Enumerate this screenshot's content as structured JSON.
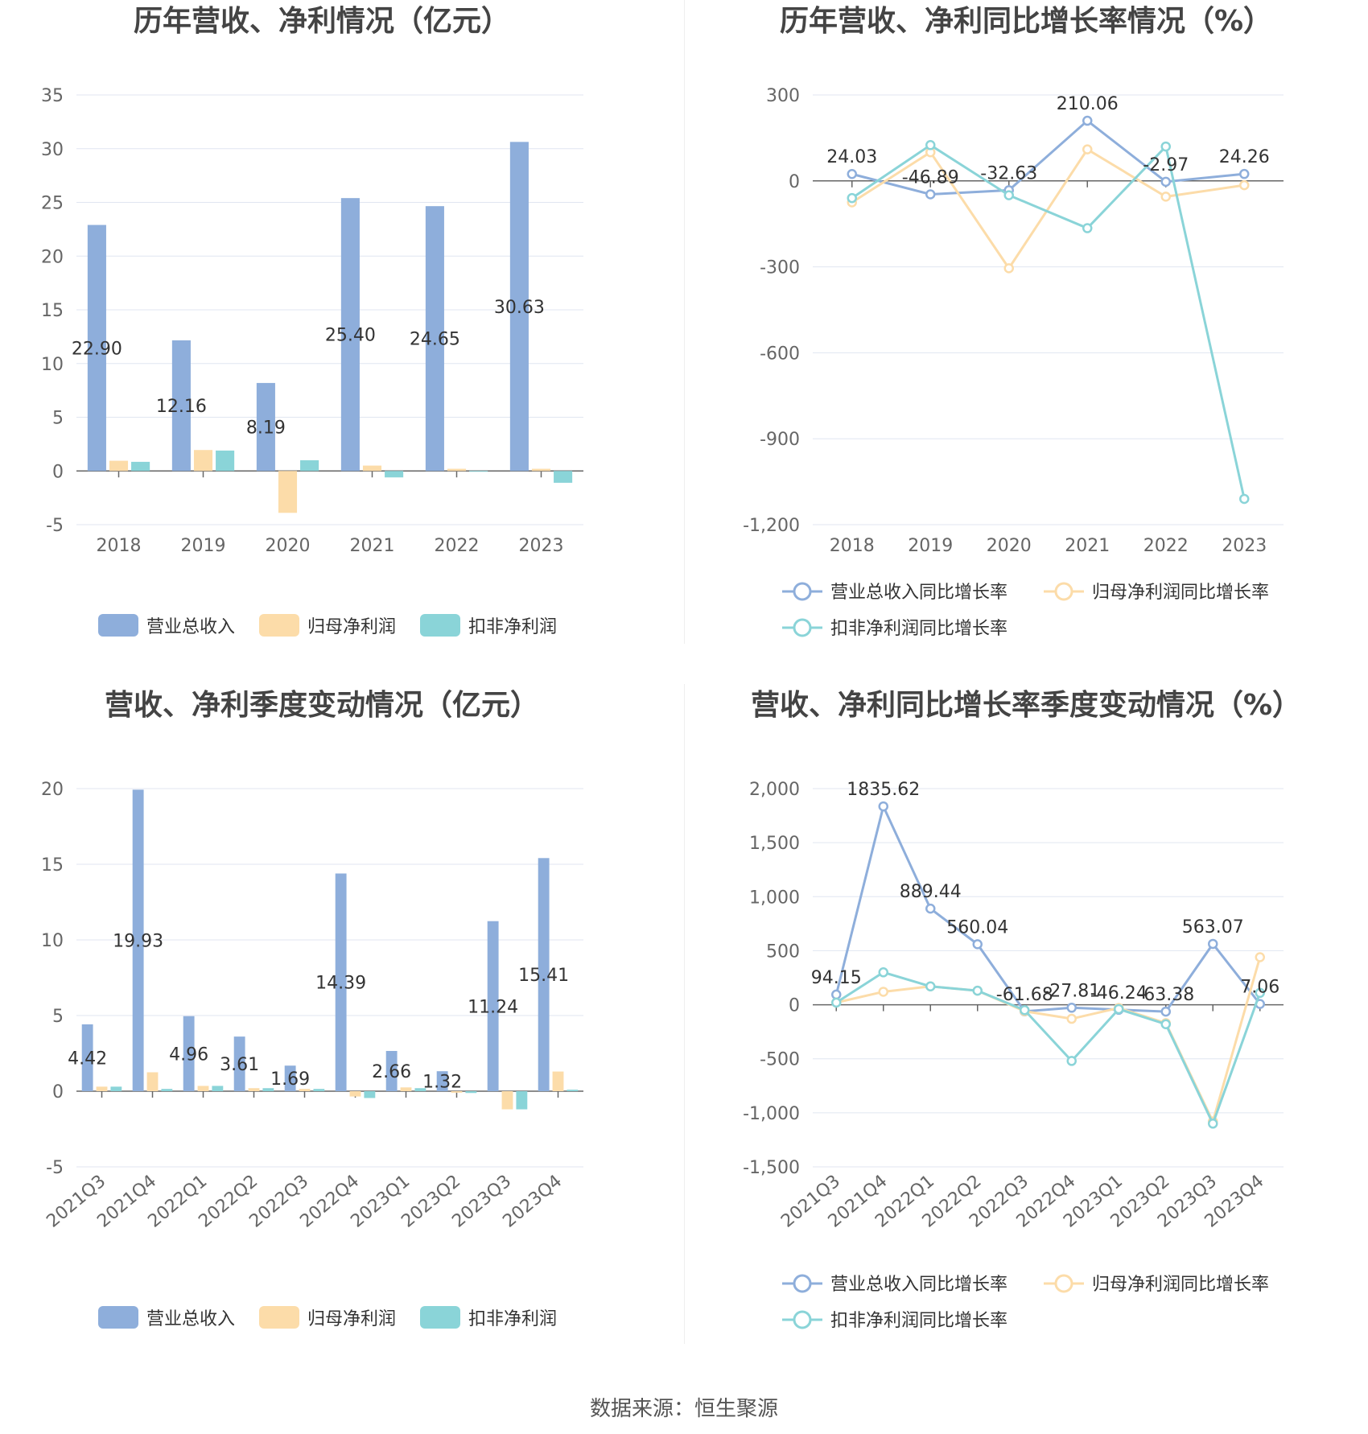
{
  "source": "数据来源：恒生聚源",
  "chart_data": [
    {
      "type": "bar",
      "title": "历年营收、净利情况（亿元）",
      "categories": [
        "2018",
        "2019",
        "2020",
        "2021",
        "2022",
        "2023"
      ],
      "ylim": [
        -5,
        35
      ],
      "yticks": [
        -5,
        0,
        5,
        10,
        15,
        20,
        25,
        30,
        35
      ],
      "grid": true,
      "legend": "bottom",
      "series": [
        {
          "name": "营业总收入",
          "color": "#8eaedb",
          "values": [
            22.9,
            12.16,
            8.19,
            25.4,
            24.65,
            30.63
          ],
          "labels": [
            "22.90",
            "12.16",
            "8.19",
            "25.40",
            "24.65",
            "30.63"
          ]
        },
        {
          "name": "归母净利润",
          "color": "#fcdca9",
          "values": [
            0.95,
            1.95,
            -3.9,
            0.5,
            0.2,
            0.2
          ]
        },
        {
          "name": "扣非净利润",
          "color": "#8ad4d8",
          "values": [
            0.85,
            1.9,
            1.0,
            -0.6,
            -0.05,
            -1.1
          ]
        }
      ]
    },
    {
      "type": "line",
      "title": "历年营收、净利同比增长率情况（%）",
      "categories": [
        "2018",
        "2019",
        "2020",
        "2021",
        "2022",
        "2023"
      ],
      "ylim": [
        -1200,
        300
      ],
      "yticks": [
        -1200,
        -900,
        -600,
        -300,
        0,
        300
      ],
      "ytick_labels": [
        "-1,200",
        "-900",
        "-600",
        "-300",
        "0",
        "300"
      ],
      "grid": true,
      "legend": "bottom",
      "series": [
        {
          "name": "营业总收入同比增长率",
          "color": "#8eaedb",
          "values": [
            24.03,
            -46.89,
            -32.63,
            210.06,
            -2.97,
            24.26
          ],
          "labels": [
            "24.03",
            "-46.89",
            "-32.63",
            "210.06",
            "-2.97",
            "24.26"
          ]
        },
        {
          "name": "归母净利润同比增长率",
          "color": "#fcdca9",
          "values": [
            -75,
            100,
            -305,
            110,
            -55,
            -15
          ]
        },
        {
          "name": "扣非净利润同比增长率",
          "color": "#8ad4d8",
          "values": [
            -60,
            125,
            -50,
            -165,
            120,
            -1110
          ]
        }
      ]
    },
    {
      "type": "bar",
      "title": "营收、净利季度变动情况（亿元）",
      "categories": [
        "2021Q3",
        "2021Q4",
        "2022Q1",
        "2022Q2",
        "2022Q3",
        "2022Q4",
        "2023Q1",
        "2023Q2",
        "2023Q3",
        "2023Q4"
      ],
      "ylim": [
        -5,
        20
      ],
      "yticks": [
        -5,
        0,
        5,
        10,
        15,
        20
      ],
      "grid": true,
      "legend": "bottom",
      "series": [
        {
          "name": "营业总收入",
          "color": "#8eaedb",
          "values": [
            4.42,
            19.93,
            4.96,
            3.61,
            1.69,
            14.39,
            2.66,
            1.32,
            11.24,
            15.41
          ],
          "labels": [
            "4.42",
            "19.93",
            "4.96",
            "3.61",
            "1.69",
            "14.39",
            "2.66",
            "1.32",
            "11.24",
            "15.41"
          ]
        },
        {
          "name": "归母净利润",
          "color": "#fcdca9",
          "values": [
            0.3,
            1.25,
            0.35,
            0.2,
            0.15,
            -0.35,
            0.25,
            -0.1,
            -1.2,
            1.3
          ]
        },
        {
          "name": "扣非净利润",
          "color": "#8ad4d8",
          "values": [
            0.3,
            0.15,
            0.35,
            0.2,
            0.15,
            -0.45,
            0.2,
            -0.12,
            -1.2,
            0.1
          ]
        }
      ]
    },
    {
      "type": "line",
      "title": "营收、净利同比增长率季度变动情况（%）",
      "categories": [
        "2021Q3",
        "2021Q4",
        "2022Q1",
        "2022Q2",
        "2022Q3",
        "2022Q4",
        "2023Q1",
        "2023Q2",
        "2023Q3",
        "2023Q4"
      ],
      "ylim": [
        -1500,
        2000
      ],
      "yticks": [
        -1500,
        -1000,
        -500,
        0,
        500,
        1000,
        1500,
        2000
      ],
      "ytick_labels": [
        "-1,500",
        "-1,000",
        "-500",
        "0",
        "500",
        "1,000",
        "1,500",
        "2,000"
      ],
      "grid": true,
      "legend": "bottom",
      "series": [
        {
          "name": "营业总收入同比增长率",
          "color": "#8eaedb",
          "values": [
            94.15,
            1835.62,
            889.44,
            560.04,
            -61.68,
            -27.81,
            -46.24,
            -63.38,
            563.07,
            7.06
          ],
          "labels": [
            "94.15",
            "1835.62",
            "889.44",
            "560.04",
            "-61.68",
            "-27.81",
            "-46.24",
            "-63.38",
            "563.07",
            "7.06"
          ]
        },
        {
          "name": "归母净利润同比增长率",
          "color": "#fcdca9",
          "values": [
            20,
            120,
            170,
            130,
            -60,
            -130,
            -30,
            -170,
            -1080,
            440
          ]
        },
        {
          "name": "扣非净利润同比增长率",
          "color": "#8ad4d8",
          "values": [
            20,
            300,
            170,
            130,
            -50,
            -520,
            -40,
            -180,
            -1100,
            110
          ]
        }
      ]
    }
  ]
}
